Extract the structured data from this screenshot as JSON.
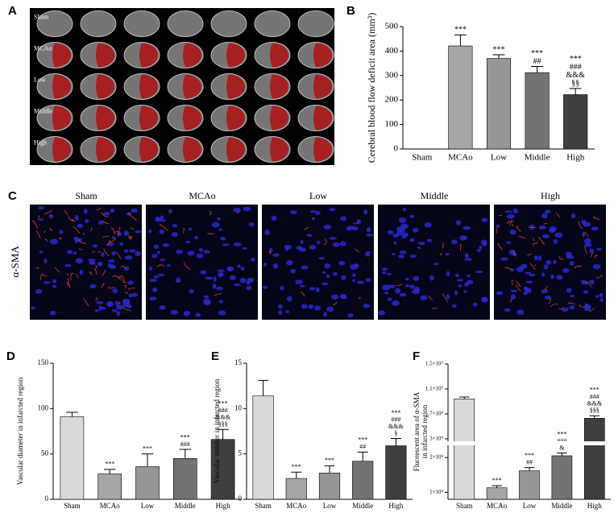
{
  "images": [
    {
      "panel": "A",
      "row_labels": [
        "Sham",
        "MCAo",
        "Low",
        "Middle",
        "High"
      ]
    },
    {
      "panel": "C",
      "column_labels": [
        "Sham",
        "MCAo",
        "Low",
        "Middle",
        "High"
      ],
      "row_label": "α-SMA"
    }
  ],
  "chart_data": [
    {
      "type": "bar",
      "panel": "B",
      "ylabel": [
        "Cerebral blood flow deficit area (mm³)"
      ],
      "categories": [
        "Sham",
        "MCAo",
        "Low",
        "Middle",
        "High"
      ],
      "values": [
        0,
        421,
        370,
        312,
        222
      ],
      "errors": [
        null,
        45,
        15,
        25,
        25
      ],
      "colors": [
        "#d9d9d9",
        "#a6a6a6",
        "#969696",
        "#737373",
        "#3f3f3f"
      ],
      "annotations": [
        [],
        [
          "***"
        ],
        [
          "***"
        ],
        [
          "***",
          "##"
        ],
        [
          "***",
          "###",
          "&&&",
          "§§"
        ]
      ],
      "ylim": [
        0,
        500
      ],
      "yticks": [
        0,
        100,
        200,
        300,
        400,
        500
      ]
    },
    {
      "type": "bar",
      "panel": "D",
      "ylabel": [
        "Vascular diameter in infarcted region"
      ],
      "categories": [
        "Sham",
        "MCAo",
        "Low",
        "Middle",
        "High"
      ],
      "values": [
        91,
        28,
        36,
        45,
        66
      ],
      "errors": [
        5,
        5,
        14,
        10,
        11
      ],
      "colors": [
        "#d9d9d9",
        "#a6a6a6",
        "#969696",
        "#737373",
        "#3f3f3f"
      ],
      "annotations": [
        [],
        [
          "***"
        ],
        [
          "***"
        ],
        [
          "***",
          "###"
        ],
        [
          "***",
          "###",
          "&&&",
          "§§§"
        ]
      ],
      "ylim": [
        0,
        150
      ],
      "yticks": [
        0,
        50,
        100,
        150
      ]
    },
    {
      "type": "bar",
      "panel": "E",
      "ylabel": [
        "Vascular number in infarcted region"
      ],
      "categories": [
        "Sham",
        "MCAo",
        "Low",
        "Middle",
        "High"
      ],
      "values": [
        11.4,
        2.3,
        2.9,
        4.2,
        5.9
      ],
      "errors": [
        1.7,
        0.7,
        0.8,
        1.0,
        0.8
      ],
      "colors": [
        "#d9d9d9",
        "#a6a6a6",
        "#969696",
        "#737373",
        "#3f3f3f"
      ],
      "annotations": [
        [],
        [
          "***"
        ],
        [
          "***"
        ],
        [
          "***",
          "##"
        ],
        [
          "***",
          "###",
          "&&&",
          "§"
        ]
      ],
      "ylim": [
        0,
        15
      ],
      "yticks": [
        0,
        5,
        10,
        15
      ]
    },
    {
      "type": "bar",
      "panel": "F",
      "ylabel": [
        "Fluorescent area of α-SMA",
        "in infarcted region"
      ],
      "categories": [
        "Sham",
        "MCAo",
        "Low",
        "Middle",
        "High"
      ],
      "values": [
        94000,
        11300,
        16200,
        20500,
        63000
      ],
      "errors": [
        3000,
        600,
        900,
        800,
        4000
      ],
      "colors": [
        "#d9d9d9",
        "#a6a6a6",
        "#969696",
        "#737373",
        "#3f3f3f"
      ],
      "annotations": [
        [],
        [
          "***"
        ],
        [
          "***",
          "##"
        ],
        [
          "***",
          "###",
          "&"
        ],
        [
          "***",
          "###",
          "&&&",
          "§§§"
        ]
      ],
      "ylim": [
        8000,
        150000
      ],
      "ybreak": [
        23500,
        26000
      ],
      "yticks": [
        {
          "value": 10000,
          "label": "1×10⁴"
        },
        {
          "value": 20000,
          "label": "2×10⁴"
        },
        {
          "value": 30000,
          "label": "3×10⁴"
        },
        {
          "value": 70000,
          "label": "7×10⁴"
        },
        {
          "value": 110000,
          "label": "1.1×10⁵"
        },
        {
          "value": 150000,
          "label": "1.5×10⁵"
        }
      ]
    }
  ]
}
